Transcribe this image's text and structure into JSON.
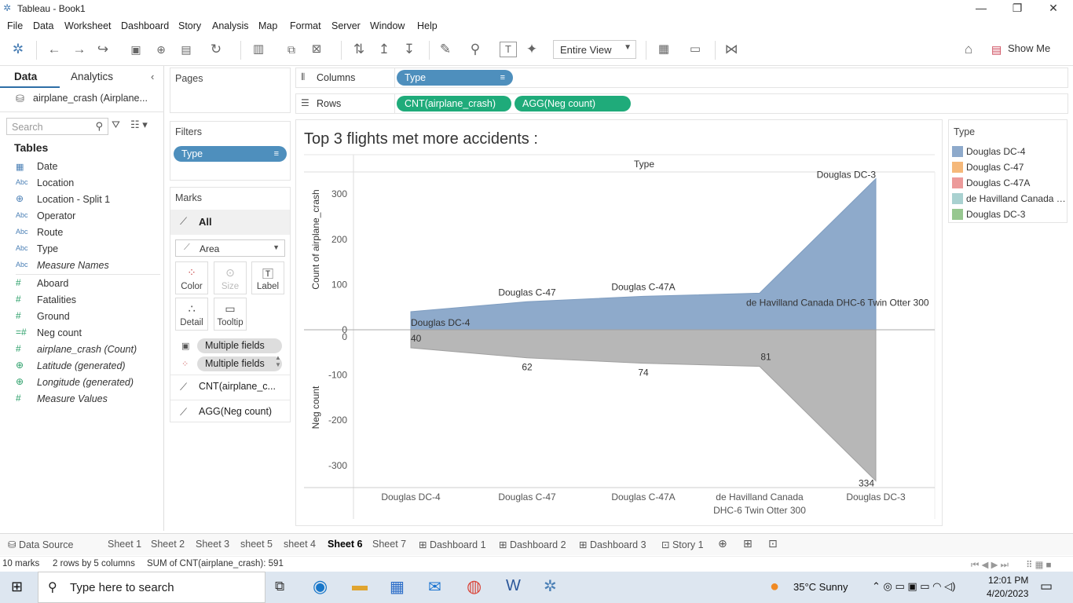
{
  "window": {
    "title": "Tableau - Book1"
  },
  "menu": [
    "File",
    "Data",
    "Worksheet",
    "Dashboard",
    "Story",
    "Analysis",
    "Map",
    "Format",
    "Server",
    "Window",
    "Help"
  ],
  "toolbar": {
    "fit_select": "Entire View",
    "show_me": "Show Me"
  },
  "data_pane": {
    "tab_data": "Data",
    "tab_analytics": "Analytics",
    "datasource": "airplane_crash (Airplane...",
    "search_placeholder": "Search",
    "tables_heading": "Tables",
    "fields": [
      {
        "icon": "calendar-icon",
        "type": "date",
        "name": "Date"
      },
      {
        "icon": "abc-icon",
        "type": "string",
        "name": "Location"
      },
      {
        "icon": "globe-icon",
        "type": "geo",
        "name": "Location - Split 1"
      },
      {
        "icon": "abc-icon",
        "type": "string",
        "name": "Operator"
      },
      {
        "icon": "abc-icon",
        "type": "string",
        "name": "Route"
      },
      {
        "icon": "abc-icon",
        "type": "string",
        "name": "Type"
      },
      {
        "icon": "abc-icon",
        "type": "string",
        "name": "Measure Names"
      },
      {
        "icon": "hash-icon",
        "type": "number",
        "name": "Aboard"
      },
      {
        "icon": "hash-icon",
        "type": "number",
        "name": "Fatalities"
      },
      {
        "icon": "hash-icon",
        "type": "number",
        "name": "Ground"
      },
      {
        "icon": "calc-hash-icon",
        "type": "number",
        "name": "Neg count"
      },
      {
        "icon": "hash-icon",
        "type": "number",
        "name": "airplane_crash (Count)"
      },
      {
        "icon": "globe-icon",
        "type": "geo",
        "name": "Latitude (generated)"
      },
      {
        "icon": "globe-icon",
        "type": "geo",
        "name": "Longitude (generated)"
      },
      {
        "icon": "hash-icon",
        "type": "number",
        "name": "Measure Values"
      }
    ]
  },
  "shelves": {
    "pages": "Pages",
    "filters": "Filters",
    "filter_pill": "Type",
    "columns_label": "Columns",
    "rows_label": "Rows",
    "columns_pill": "Type",
    "rows_pill_1": "CNT(airplane_crash)",
    "rows_pill_2": "AGG(Neg count)"
  },
  "marks": {
    "title": "Marks",
    "all": "All",
    "mark_type": "Area",
    "color": "Color",
    "size": "Size",
    "label": "Label",
    "detail": "Detail",
    "tooltip": "Tooltip",
    "multi_1": "Multiple fields",
    "multi_2": "Multiple fields",
    "sub_1": "CNT(airplane_c...",
    "sub_2": "AGG(Neg count)"
  },
  "legend": {
    "title": "Type",
    "items": [
      {
        "label": "Douglas DC-4",
        "color": "#8eaacb"
      },
      {
        "label": "Douglas C-47",
        "color": "#f5b87a"
      },
      {
        "label": "Douglas C-47A",
        "color": "#ec9a9a"
      },
      {
        "label": "de Havilland Canada DHC-6 Twin Otter 300",
        "color": "#a9d1d0"
      },
      {
        "label": "Douglas DC-3",
        "color": "#97c790"
      }
    ]
  },
  "chart_data": {
    "type": "area",
    "title": "Top 3 flights met more accidents :",
    "column_header": "Type",
    "categories": [
      "Douglas DC-4",
      "Douglas C-47",
      "Douglas C-47A",
      "de Havilland Canada DHC-6 Twin Otter 300",
      "Douglas DC-3"
    ],
    "category_labels_axis": [
      [
        "Douglas DC-4"
      ],
      [
        "Douglas C-47"
      ],
      [
        "Douglas C-47A"
      ],
      [
        "de Havilland Canada",
        "DHC-6 Twin Otter 300"
      ],
      [
        "Douglas DC-3"
      ]
    ],
    "top": {
      "ylabel": "Count of airplane_crash",
      "values": [
        40,
        62,
        74,
        81,
        334
      ],
      "ylim": [
        0,
        334
      ],
      "ticks": [
        0,
        100,
        200,
        300
      ],
      "color": "#8eaacb",
      "point_labels": [
        "Douglas DC-4",
        "Douglas C-47",
        "Douglas C-47A",
        "de Havilland Canada DHC-6 Twin Otter 300",
        "Douglas DC-3"
      ]
    },
    "bottom": {
      "ylabel": "Neg count",
      "values": [
        -40,
        -62,
        -74,
        -81,
        -334
      ],
      "ylim": [
        -334,
        0
      ],
      "ticks": [
        0,
        -100,
        -200,
        -300
      ],
      "color": "#b7b7b7",
      "point_labels": [
        "40",
        "62",
        "74",
        "81",
        "334"
      ]
    }
  },
  "sheet_tabs": [
    "Data Source",
    "Sheet 1",
    "Sheet 2",
    "Sheet 3",
    "sheet 5",
    "sheet 4",
    "Sheet 6",
    "Sheet 7",
    "Dashboard 1",
    "Dashboard 2",
    "Dashboard 3",
    "Story 1"
  ],
  "active_tab": "Sheet 6",
  "status": {
    "marks": "10 marks",
    "dims": "2 rows by 5 columns",
    "sum": "SUM of CNT(airplane_crash): 591"
  },
  "taskbar": {
    "search": "Type here to search",
    "weather": "35°C  Sunny",
    "time": "12:01 PM",
    "date": "4/20/2023"
  }
}
